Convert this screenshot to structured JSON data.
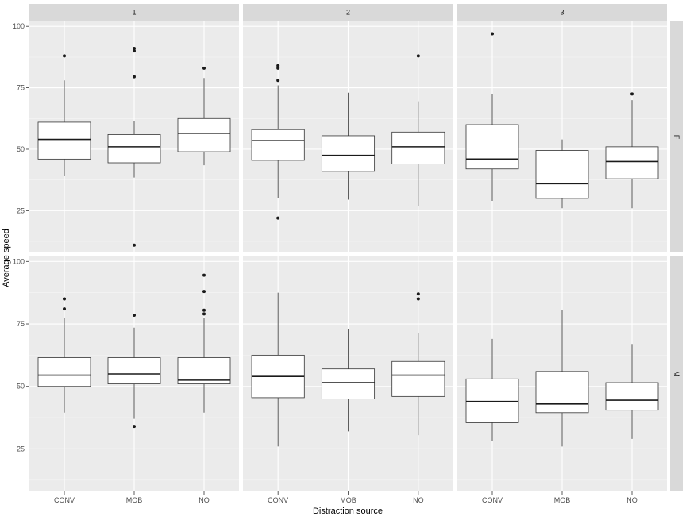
{
  "chart_data": {
    "type": "boxplot",
    "xlabel": "Distraction source",
    "ylabel": "Average speed",
    "ylim": [
      8,
      102
    ],
    "yticks": [
      25,
      50,
      75,
      100
    ],
    "categories": [
      "CONV",
      "MOB",
      "NO"
    ],
    "col_facets": [
      "1",
      "2",
      "3"
    ],
    "row_facets": [
      "F",
      "M"
    ],
    "grid": true,
    "panels": [
      {
        "col": "1",
        "row": "F",
        "boxes": [
          {
            "category": "CONV",
            "min": 39,
            "q1": 46,
            "median": 54,
            "q3": 61,
            "max": 78,
            "outliers": [
              88
            ]
          },
          {
            "category": "MOB",
            "min": 38.5,
            "q1": 44.5,
            "median": 51,
            "q3": 56,
            "max": 61.5,
            "outliers": [
              79.5,
              90,
              91,
              11
            ]
          },
          {
            "category": "NO",
            "min": 43.5,
            "q1": 49,
            "median": 56.5,
            "q3": 62.5,
            "max": 79,
            "outliers": [
              83
            ]
          }
        ]
      },
      {
        "col": "2",
        "row": "F",
        "boxes": [
          {
            "category": "CONV",
            "min": 30,
            "q1": 45.5,
            "median": 53.5,
            "q3": 58,
            "max": 76,
            "outliers": [
              78,
              83,
              84,
              22
            ]
          },
          {
            "category": "MOB",
            "min": 29.5,
            "q1": 41,
            "median": 47.5,
            "q3": 55.5,
            "max": 73,
            "outliers": []
          },
          {
            "category": "NO",
            "min": 27,
            "q1": 44,
            "median": 51,
            "q3": 57,
            "max": 69.5,
            "outliers": [
              88
            ]
          }
        ]
      },
      {
        "col": "3",
        "row": "F",
        "boxes": [
          {
            "category": "CONV",
            "min": 29,
            "q1": 42,
            "median": 46,
            "q3": 60,
            "max": 72.5,
            "outliers": [
              97
            ]
          },
          {
            "category": "MOB",
            "min": 26,
            "q1": 30,
            "median": 36,
            "q3": 49.5,
            "max": 54,
            "outliers": []
          },
          {
            "category": "NO",
            "min": 26,
            "q1": 38,
            "median": 45,
            "q3": 51,
            "max": 70,
            "outliers": [
              72.5
            ]
          }
        ]
      },
      {
        "col": "1",
        "row": "M",
        "boxes": [
          {
            "category": "CONV",
            "min": 39.5,
            "q1": 50,
            "median": 54.5,
            "q3": 61.5,
            "max": 77.5,
            "outliers": [
              81,
              85
            ]
          },
          {
            "category": "MOB",
            "min": 37,
            "q1": 51,
            "median": 55,
            "q3": 61.5,
            "max": 73.5,
            "outliers": [
              78.5,
              34
            ]
          },
          {
            "category": "NO",
            "min": 39.5,
            "q1": 51,
            "median": 52.5,
            "q3": 61.5,
            "max": 77.5,
            "outliers": [
              79,
              80.5,
              88,
              94.5
            ]
          }
        ]
      },
      {
        "col": "2",
        "row": "M",
        "boxes": [
          {
            "category": "CONV",
            "min": 26,
            "q1": 45.5,
            "median": 54,
            "q3": 62.5,
            "max": 87.5,
            "outliers": []
          },
          {
            "category": "MOB",
            "min": 32,
            "q1": 45,
            "median": 51.5,
            "q3": 57,
            "max": 73,
            "outliers": []
          },
          {
            "category": "NO",
            "min": 30.5,
            "q1": 46,
            "median": 54.5,
            "q3": 60,
            "max": 71.5,
            "outliers": [
              85,
              87
            ]
          }
        ]
      },
      {
        "col": "3",
        "row": "M",
        "boxes": [
          {
            "category": "CONV",
            "min": 28,
            "q1": 35.5,
            "median": 44,
            "q3": 53,
            "max": 69,
            "outliers": []
          },
          {
            "category": "MOB",
            "min": 26,
            "q1": 39.5,
            "median": 43,
            "q3": 56,
            "max": 80.5,
            "outliers": []
          },
          {
            "category": "NO",
            "min": 29,
            "q1": 40.5,
            "median": 44.5,
            "q3": 51.5,
            "max": 67,
            "outliers": []
          }
        ]
      }
    ]
  },
  "colors": {
    "panel_background": "#ebebeb",
    "grid_major": "#ffffff",
    "grid_minor": "#f5f5f5",
    "strip_background": "#d9d9d9",
    "box_fill": "#ffffff",
    "box_line": "#333333",
    "tick_text": "#4d4d4d"
  }
}
